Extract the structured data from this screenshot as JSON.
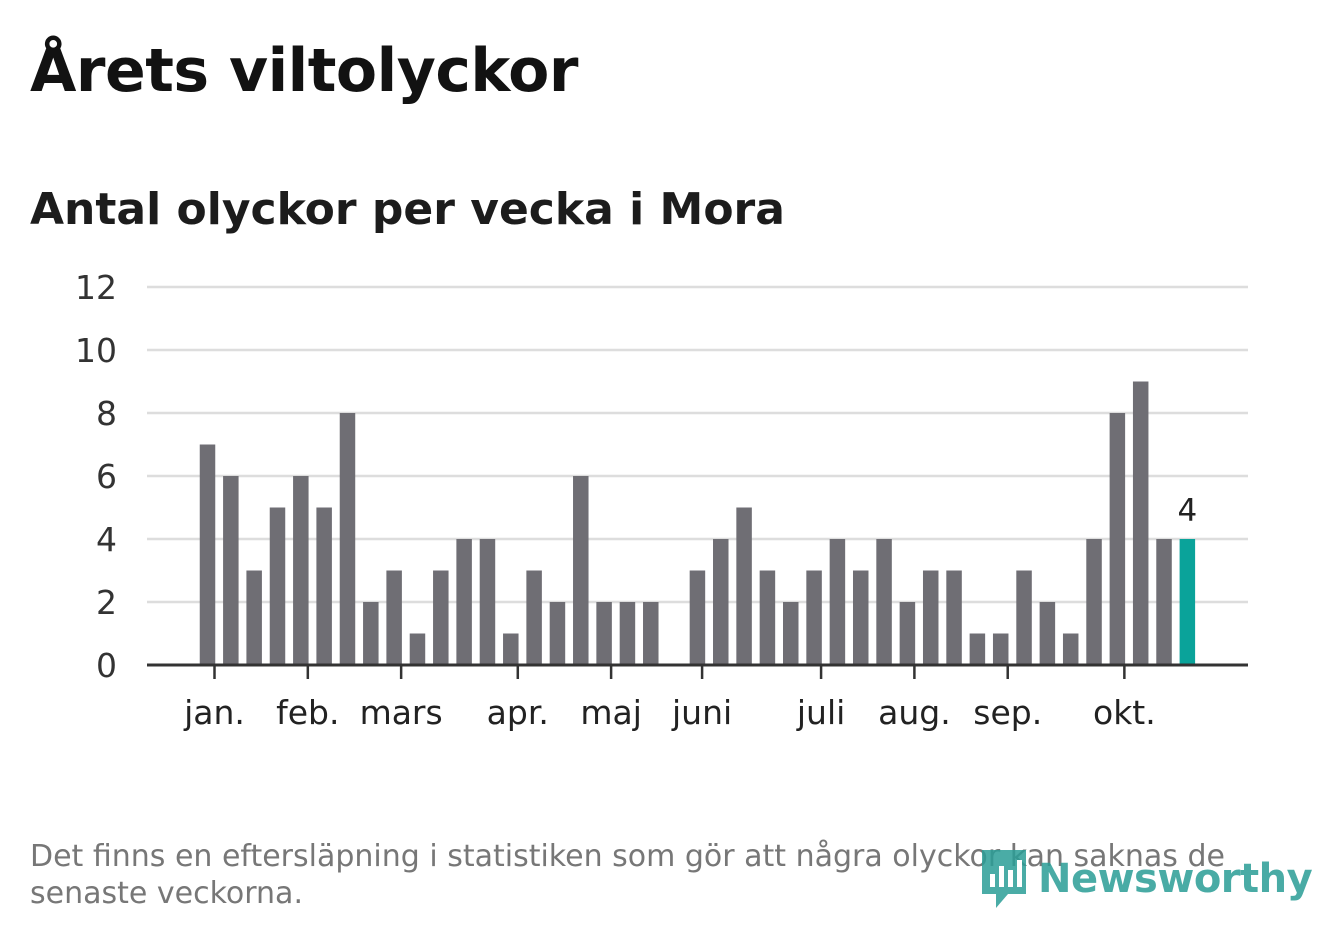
{
  "title": "Årets viltolyckor",
  "subtitle": "Antal olyckor per vecka i Mora",
  "footnote": "Det finns en eftersläpning i statistiken som gör att några olyckor kan saknas de senaste veckorna.",
  "brand": "Newsworthy",
  "colors": {
    "bar": "#6f6e74",
    "highlight": "#0aa39a",
    "grid": "#dddddd",
    "axis": "#333333",
    "brand": "#2a9d96"
  },
  "chart_data": {
    "type": "bar",
    "title": "Antal olyckor per vecka i Mora",
    "xlabel": "",
    "ylabel": "",
    "ylim": [
      0,
      12
    ],
    "yticks": [
      0,
      2,
      4,
      6,
      8,
      10,
      12
    ],
    "weeks": [
      1,
      2,
      3,
      4,
      5,
      6,
      7,
      8,
      9,
      10,
      11,
      12,
      13,
      14,
      15,
      16,
      17,
      18,
      19,
      20,
      21,
      22,
      23,
      24,
      25,
      26,
      27,
      28,
      29,
      30,
      31,
      32,
      33,
      34,
      35,
      36,
      37,
      38,
      39,
      40,
      41,
      42,
      43
    ],
    "values": [
      7,
      6,
      3,
      5,
      6,
      5,
      8,
      2,
      3,
      1,
      3,
      4,
      4,
      1,
      3,
      2,
      6,
      2,
      2,
      2,
      0,
      3,
      4,
      5,
      3,
      2,
      3,
      4,
      3,
      4,
      2,
      3,
      3,
      1,
      1,
      3,
      2,
      1,
      4,
      8,
      9,
      4,
      4
    ],
    "highlight_index": 42,
    "highlight_label": "4",
    "month_labels": [
      {
        "label": "jan.",
        "week": 1.3
      },
      {
        "label": "feb.",
        "week": 5.3
      },
      {
        "label": "mars",
        "week": 9.3
      },
      {
        "label": "apr.",
        "week": 14.3
      },
      {
        "label": "maj",
        "week": 18.3
      },
      {
        "label": "juni",
        "week": 22.2
      },
      {
        "label": "juli",
        "week": 27.3
      },
      {
        "label": "aug.",
        "week": 31.3
      },
      {
        "label": "sep.",
        "week": 35.3
      },
      {
        "label": "okt.",
        "week": 40.3
      }
    ]
  }
}
